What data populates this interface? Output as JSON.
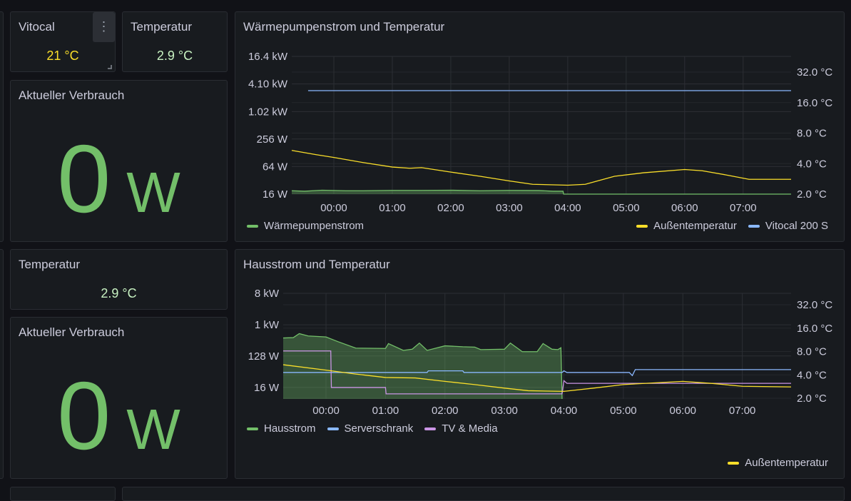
{
  "row1": {
    "vitocal": {
      "title": "Vitocal",
      "value": "21 °C",
      "color": "#fade2a"
    },
    "temperatur": {
      "title": "Temperatur",
      "value": "2.9 °C",
      "color": "#c8f2c2"
    },
    "verbrauch": {
      "title": "Aktueller Verbrauch",
      "value": "0",
      "unit": "W"
    }
  },
  "row2": {
    "temperatur": {
      "title": "Temperatur",
      "value": "2.9 °C",
      "color": "#c8f2c2"
    },
    "verbrauch": {
      "title": "Aktueller Verbrauch",
      "value": "0",
      "unit": "W"
    }
  },
  "menu_icon": "vertical-ellipsis",
  "chart_data": [
    {
      "type": "line",
      "title": "Wärmepumpenstrom und Temperatur",
      "x_range_hours": [
        -0.72,
        7.82
      ],
      "x_ticks": [
        "00:00",
        "01:00",
        "02:00",
        "03:00",
        "04:00",
        "05:00",
        "06:00",
        "07:00"
      ],
      "y_left": {
        "scale": "log2",
        "range_w": [
          16,
          16400
        ],
        "ticks": [
          {
            "v": 16,
            "label": "16 W"
          },
          {
            "v": 64,
            "label": "64 W"
          },
          {
            "v": 256,
            "label": "256 W"
          },
          {
            "v": 1020,
            "label": "1.02 kW"
          },
          {
            "v": 4100,
            "label": "4.10 kW"
          },
          {
            "v": 16400,
            "label": "16.4 kW"
          }
        ]
      },
      "y_right": {
        "scale": "log2",
        "range_c": [
          2,
          32
        ],
        "ticks": [
          {
            "v": 2,
            "label": "2.0 °C"
          },
          {
            "v": 4,
            "label": "4.0 °C"
          },
          {
            "v": 8,
            "label": "8.0 °C"
          },
          {
            "v": 16,
            "label": "16.0 °C"
          },
          {
            "v": 32,
            "label": "32.0 °C"
          }
        ]
      },
      "series": [
        {
          "name": "Wärmepumpenstrom",
          "axis": "left",
          "color": "#73bf69",
          "fill": true,
          "points": [
            [
              -0.72,
              19
            ],
            [
              -0.5,
              18.5
            ],
            [
              -0.2,
              19.5
            ],
            [
              0.2,
              19
            ],
            [
              0.5,
              19
            ],
            [
              1,
              19.3
            ],
            [
              1.5,
              19.3
            ],
            [
              2,
              19.5
            ],
            [
              2.5,
              19
            ],
            [
              3,
              19.3
            ],
            [
              3.5,
              19.2
            ],
            [
              3.75,
              18.5
            ],
            [
              3.92,
              18.5
            ],
            [
              3.93,
              16
            ],
            [
              7.82,
              16
            ]
          ]
        },
        {
          "name": "Außentemperatur",
          "axis": "right",
          "color": "#fade2a",
          "points": [
            [
              -0.72,
              5.4
            ],
            [
              -0.3,
              4.9
            ],
            [
              0,
              4.6
            ],
            [
              0.5,
              4.1
            ],
            [
              1,
              3.7
            ],
            [
              1.3,
              3.6
            ],
            [
              1.5,
              3.65
            ],
            [
              2,
              3.3
            ],
            [
              2.5,
              3.0
            ],
            [
              3,
              2.7
            ],
            [
              3.4,
              2.5
            ],
            [
              4.0,
              2.45
            ],
            [
              4.3,
              2.5
            ],
            [
              4.8,
              3.0
            ],
            [
              5.3,
              3.25
            ],
            [
              6,
              3.5
            ],
            [
              6.3,
              3.4
            ],
            [
              6.7,
              3.1
            ],
            [
              7.1,
              2.8
            ],
            [
              7.82,
              2.8
            ]
          ]
        },
        {
          "name": "Vitocal 200 S",
          "axis": "right",
          "color": "#8ab8ff",
          "points": [
            [
              -0.44,
              21
            ],
            [
              7.82,
              21
            ]
          ]
        }
      ],
      "legend_left": [
        "Wärmepumpenstrom"
      ],
      "legend_right": [
        "Außentemperatur",
        "Vitocal 200 S"
      ]
    },
    {
      "type": "line",
      "title": "Hausstrom und Temperatur",
      "x_range_hours": [
        -0.72,
        7.82
      ],
      "x_ticks": [
        "00:00",
        "01:00",
        "02:00",
        "03:00",
        "04:00",
        "05:00",
        "06:00",
        "07:00"
      ],
      "y_left": {
        "scale": "log2",
        "range_w": [
          7.5,
          8000
        ],
        "ticks": [
          {
            "v": 16,
            "label": "16 W"
          },
          {
            "v": 128,
            "label": "128 W"
          },
          {
            "v": 1000,
            "label": "1 kW"
          },
          {
            "v": 8000,
            "label": "8 kW"
          }
        ]
      },
      "y_right": {
        "scale": "log2",
        "range_c": [
          2,
          32
        ],
        "ticks": [
          {
            "v": 2,
            "label": "2.0 °C"
          },
          {
            "v": 4,
            "label": "4.0 °C"
          },
          {
            "v": 8,
            "label": "8.0 °C"
          },
          {
            "v": 16,
            "label": "16.0 °C"
          },
          {
            "v": 32,
            "label": "32.0 °C"
          }
        ]
      },
      "series": [
        {
          "name": "Hausstrom",
          "axis": "left",
          "color": "#73bf69",
          "fill": true,
          "points": [
            [
              -0.72,
              420
            ],
            [
              -0.55,
              430
            ],
            [
              -0.45,
              560
            ],
            [
              -0.3,
              480
            ],
            [
              0,
              450
            ],
            [
              0.2,
              330
            ],
            [
              0.5,
              215
            ],
            [
              1,
              210
            ],
            [
              1.05,
              290
            ],
            [
              1.3,
              185
            ],
            [
              1.45,
              200
            ],
            [
              1.57,
              300
            ],
            [
              1.7,
              185
            ],
            [
              2,
              250
            ],
            [
              2.3,
              235
            ],
            [
              2.5,
              230
            ],
            [
              2.6,
              195
            ],
            [
              3,
              200
            ],
            [
              3.1,
              300
            ],
            [
              3.3,
              170
            ],
            [
              3.55,
              170
            ],
            [
              3.65,
              290
            ],
            [
              3.8,
              200
            ],
            [
              3.9,
              195
            ],
            [
              3.95,
              220
            ],
            [
              3.97,
              7.5
            ]
          ]
        },
        {
          "name": "Serverschrank",
          "axis": "left",
          "color": "#8ab8ff",
          "points": [
            [
              -0.72,
              43
            ],
            [
              1.7,
              43
            ],
            [
              1.72,
              48
            ],
            [
              2,
              48
            ],
            [
              2.3,
              48
            ],
            [
              2.32,
              43
            ],
            [
              3.97,
              43
            ],
            [
              4.0,
              48
            ],
            [
              4.05,
              43
            ],
            [
              5.1,
              43
            ],
            [
              5.15,
              35
            ],
            [
              5.2,
              52
            ],
            [
              7.82,
              52
            ]
          ]
        },
        {
          "name": "TV & Media",
          "axis": "left",
          "color": "#ca95e5",
          "points": [
            [
              -0.72,
              178
            ],
            [
              0.08,
              178
            ],
            [
              0.09,
              16
            ],
            [
              1,
              16
            ],
            [
              1.01,
              10.5
            ],
            [
              3.97,
              10.5
            ],
            [
              4,
              25
            ],
            [
              4.05,
              21
            ],
            [
              7.82,
              21
            ]
          ]
        },
        {
          "name": "Außentemperatur",
          "axis": "right",
          "color": "#fade2a",
          "points": [
            [
              -0.72,
              5.4
            ],
            [
              0,
              4.6
            ],
            [
              0.5,
              4.1
            ],
            [
              1,
              3.7
            ],
            [
              1.5,
              3.65
            ],
            [
              2,
              3.3
            ],
            [
              2.5,
              3.0
            ],
            [
              3,
              2.7
            ],
            [
              3.4,
              2.5
            ],
            [
              4.0,
              2.45
            ],
            [
              4.5,
              2.7
            ],
            [
              5,
              3.0
            ],
            [
              6,
              3.3
            ],
            [
              6.5,
              3.1
            ],
            [
              7,
              2.85
            ],
            [
              7.82,
              2.8
            ]
          ]
        }
      ],
      "legend_left": [
        "Hausstrom",
        "Serverschrank",
        "TV & Media"
      ],
      "legend_right": [
        "Außentemperatur"
      ]
    }
  ]
}
